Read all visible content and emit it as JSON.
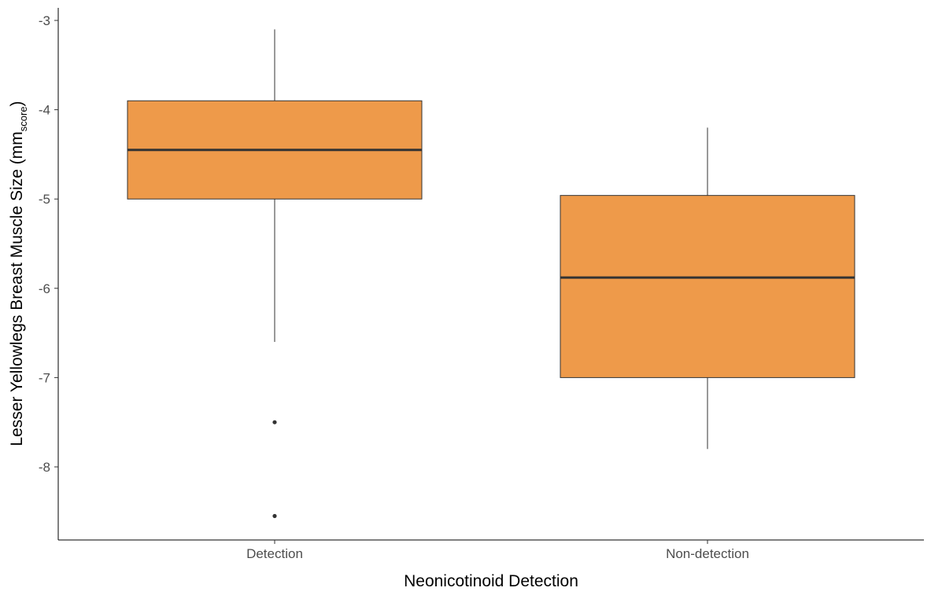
{
  "chart_data": {
    "type": "boxplot",
    "xlabel": "Neonicotinoid Detection",
    "ylabel": {
      "main": "Lesser Yellowlegs Breast Muscle Size  (mm",
      "subscript": "score",
      "close": ")"
    },
    "categories": [
      "Detection",
      "Non-detection"
    ],
    "boxes": [
      {
        "category": "Detection",
        "whisker_low": -6.6,
        "q1": -5.0,
        "median": -4.45,
        "q3": -3.9,
        "whisker_high": -3.1,
        "outliers": [
          -7.5,
          -8.55
        ]
      },
      {
        "category": "Non-detection",
        "whisker_low": -7.8,
        "q1": -7.0,
        "median": -5.88,
        "q3": -4.96,
        "whisker_high": -4.2,
        "outliers": []
      }
    ],
    "y_ticks": [
      -3,
      -4,
      -5,
      -6,
      -7,
      -8
    ],
    "y_tick_labels": [
      "-3",
      "-4",
      "-5",
      "-6",
      "-7",
      "-8"
    ],
    "ylim": [
      -8.8,
      -2.8
    ],
    "fill_color": "#EE9A4A",
    "grid": false
  }
}
